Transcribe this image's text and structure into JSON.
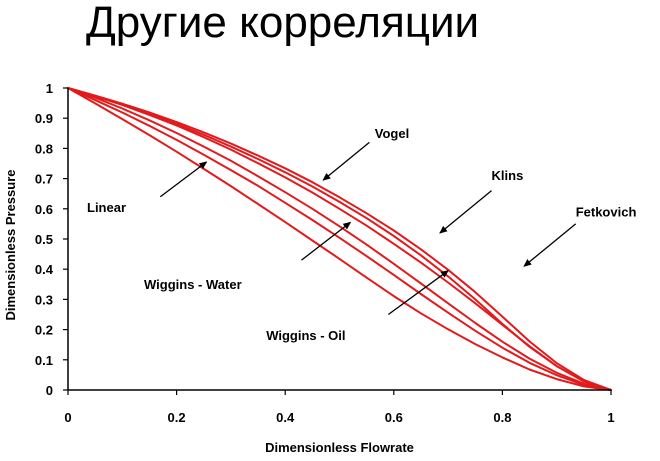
{
  "page": {
    "title": "Другие корреляции"
  },
  "chart_data": {
    "type": "line",
    "title": "",
    "xlabel": "Dimensionless Flowrate",
    "ylabel": "Dimensionless Pressure",
    "xlim": [
      0,
      1
    ],
    "ylim": [
      0,
      1
    ],
    "x_ticks": [
      "0",
      "0.2",
      "0.4",
      "0.6",
      "0.8",
      "1"
    ],
    "y_ticks": [
      "0",
      "0.1",
      "0.2",
      "0.3",
      "0.4",
      "0.5",
      "0.6",
      "0.7",
      "0.8",
      "0.9",
      "1"
    ],
    "grid": false,
    "line_color": "#e31a1c",
    "x": [
      0,
      0.05,
      0.1,
      0.15,
      0.2,
      0.25,
      0.3,
      0.35,
      0.4,
      0.45,
      0.5,
      0.55,
      0.6,
      0.65,
      0.7,
      0.75,
      0.8,
      0.85,
      0.9,
      0.95,
      1
    ],
    "series": [
      {
        "values": [
          1,
          0.949,
          0.897,
          0.844,
          0.789,
          0.732,
          0.675,
          0.616,
          0.556,
          0.495,
          0.434,
          0.372,
          0.311,
          0.254,
          0.201,
          0.152,
          0.108,
          0.068,
          0.036,
          0.012,
          0
        ]
      },
      {
        "values": [
          1,
          0.96,
          0.919,
          0.875,
          0.828,
          0.779,
          0.728,
          0.676,
          0.62,
          0.563,
          0.504,
          0.443,
          0.381,
          0.318,
          0.256,
          0.196,
          0.14,
          0.09,
          0.049,
          0.017,
          0
        ]
      },
      {
        "values": [
          1,
          0.968,
          0.932,
          0.893,
          0.851,
          0.806,
          0.759,
          0.708,
          0.655,
          0.6,
          0.542,
          0.481,
          0.418,
          0.353,
          0.287,
          0.222,
          0.16,
          0.104,
          0.057,
          0.021,
          0
        ]
      },
      {
        "values": [
          1,
          0.973,
          0.944,
          0.911,
          0.876,
          0.837,
          0.796,
          0.751,
          0.704,
          0.654,
          0.6,
          0.544,
          0.484,
          0.422,
          0.356,
          0.287,
          0.216,
          0.145,
          0.079,
          0.028,
          0
        ]
      },
      {
        "values": [
          1,
          0.973,
          0.945,
          0.914,
          0.881,
          0.845,
          0.806,
          0.765,
          0.721,
          0.674,
          0.623,
          0.569,
          0.51,
          0.446,
          0.376,
          0.3,
          0.219,
          0.143,
          0.079,
          0.029,
          0
        ]
      },
      {
        "values": [
          1,
          0.975,
          0.948,
          0.919,
          0.887,
          0.853,
          0.816,
          0.776,
          0.734,
          0.688,
          0.638,
          0.585,
          0.528,
          0.466,
          0.398,
          0.324,
          0.243,
          0.161,
          0.089,
          0.033,
          0
        ]
      }
    ],
    "annotations": [
      {
        "label": "Vogel",
        "text_at": [
          0.565,
          0.835
        ],
        "arrow_from": [
          0.555,
          0.82
        ],
        "arrow_to": [
          0.47,
          0.695
        ]
      },
      {
        "label": "Klins",
        "text_at": [
          0.78,
          0.695
        ],
        "arrow_from": [
          0.78,
          0.66
        ],
        "arrow_to": [
          0.685,
          0.52
        ]
      },
      {
        "label": "Fetkovich",
        "text_at": [
          0.935,
          0.575
        ],
        "arrow_from": [
          0.935,
          0.55
        ],
        "arrow_to": [
          0.84,
          0.41
        ]
      },
      {
        "label": "Linear",
        "text_at": [
          0.035,
          0.59
        ],
        "arrow_from": [
          0.17,
          0.64
        ],
        "arrow_to": [
          0.255,
          0.755
        ]
      },
      {
        "label": "Wiggins - Water",
        "text_at": [
          0.14,
          0.335
        ],
        "arrow_from": [
          0.43,
          0.43
        ],
        "arrow_to": [
          0.52,
          0.555
        ]
      },
      {
        "label": "Wiggins - Oil",
        "text_at": [
          0.365,
          0.165
        ],
        "arrow_from": [
          0.59,
          0.25
        ],
        "arrow_to": [
          0.7,
          0.395
        ]
      }
    ]
  }
}
